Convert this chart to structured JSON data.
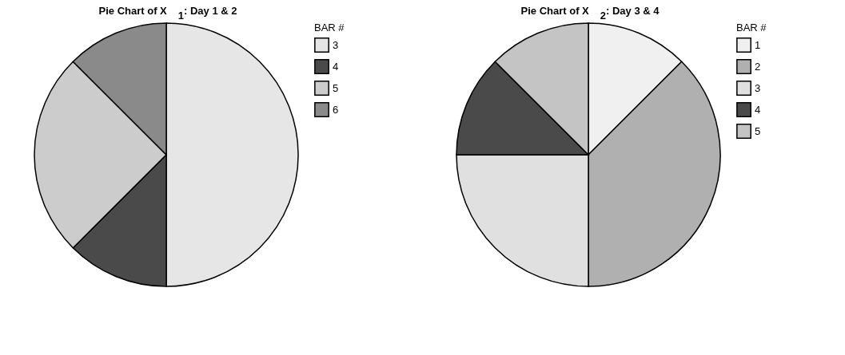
{
  "chart_data": [
    {
      "type": "pie",
      "title": "Pie Chart of X$_{1}$: Day 1 & 2",
      "legend_title": "BAR #",
      "legend": "right",
      "categories": [
        "3",
        "4",
        "5",
        "6"
      ],
      "values": [
        50,
        12.5,
        25,
        12.5
      ],
      "colors": [
        "#e6e6e6",
        "#4a4a4a",
        "#cccccc",
        "#8a8a8a"
      ]
    },
    {
      "type": "pie",
      "title": "Pie Chart of X$_{2}$: Day 3 & 4",
      "legend_title": "BAR #",
      "legend": "right",
      "categories": [
        "1",
        "2",
        "3",
        "4",
        "5"
      ],
      "values": [
        12.5,
        37.5,
        25,
        12.5,
        12.5
      ],
      "colors": [
        "#f0f0f0",
        "#b0b0b0",
        "#e0e0e0",
        "#4a4a4a",
        "#c4c4c4"
      ]
    }
  ]
}
